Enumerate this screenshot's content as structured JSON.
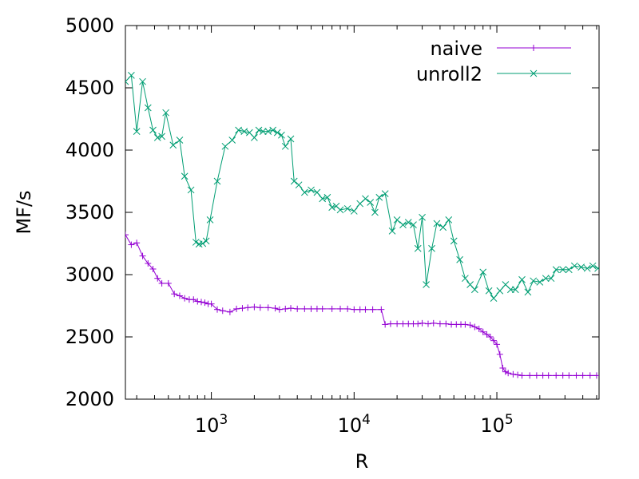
{
  "chart_data": {
    "type": "line",
    "xlabel": "R",
    "ylabel": "MF/s",
    "xscale": "log",
    "xlim": [
      250,
      520000
    ],
    "ylim": [
      2000,
      5000
    ],
    "y_ticks": [
      2000,
      2500,
      3000,
      3500,
      4000,
      4500,
      5000
    ],
    "x_ticks": [
      {
        "value": 1000,
        "base": "10",
        "exp": "3"
      },
      {
        "value": 10000,
        "base": "10",
        "exp": "4"
      },
      {
        "value": 100000,
        "base": "10",
        "exp": "5"
      }
    ],
    "grid": false,
    "legend_position": "top-right",
    "series": [
      {
        "name": "naive",
        "color": "#9400d3",
        "marker": "plus",
        "points": [
          [
            250,
            3320
          ],
          [
            275,
            3240
          ],
          [
            300,
            3255
          ],
          [
            330,
            3150
          ],
          [
            360,
            3090
          ],
          [
            390,
            3045
          ],
          [
            420,
            2970
          ],
          [
            450,
            2930
          ],
          [
            500,
            2930
          ],
          [
            550,
            2845
          ],
          [
            600,
            2830
          ],
          [
            650,
            2810
          ],
          [
            700,
            2800
          ],
          [
            750,
            2800
          ],
          [
            800,
            2785
          ],
          [
            850,
            2780
          ],
          [
            900,
            2775
          ],
          [
            950,
            2765
          ],
          [
            1000,
            2765
          ],
          [
            1100,
            2720
          ],
          [
            1200,
            2710
          ],
          [
            1350,
            2700
          ],
          [
            1500,
            2725
          ],
          [
            1650,
            2730
          ],
          [
            1800,
            2735
          ],
          [
            2000,
            2740
          ],
          [
            2200,
            2735
          ],
          [
            2500,
            2735
          ],
          [
            2800,
            2730
          ],
          [
            3000,
            2720
          ],
          [
            3300,
            2725
          ],
          [
            3600,
            2730
          ],
          [
            4000,
            2725
          ],
          [
            4500,
            2725
          ],
          [
            5000,
            2725
          ],
          [
            5500,
            2725
          ],
          [
            6000,
            2725
          ],
          [
            7000,
            2725
          ],
          [
            8000,
            2725
          ],
          [
            9000,
            2725
          ],
          [
            10000,
            2720
          ],
          [
            11000,
            2720
          ],
          [
            12000,
            2720
          ],
          [
            13500,
            2720
          ],
          [
            15500,
            2720
          ],
          [
            16500,
            2600
          ],
          [
            18000,
            2605
          ],
          [
            20000,
            2605
          ],
          [
            22000,
            2605
          ],
          [
            24000,
            2605
          ],
          [
            26000,
            2605
          ],
          [
            28000,
            2605
          ],
          [
            30000,
            2610
          ],
          [
            33000,
            2605
          ],
          [
            36000,
            2610
          ],
          [
            40000,
            2605
          ],
          [
            44000,
            2605
          ],
          [
            48000,
            2600
          ],
          [
            52000,
            2600
          ],
          [
            56000,
            2600
          ],
          [
            60000,
            2600
          ],
          [
            65000,
            2595
          ],
          [
            70000,
            2580
          ],
          [
            75000,
            2565
          ],
          [
            80000,
            2540
          ],
          [
            85000,
            2520
          ],
          [
            90000,
            2500
          ],
          [
            95000,
            2470
          ],
          [
            100000,
            2440
          ],
          [
            105000,
            2360
          ],
          [
            110000,
            2250
          ],
          [
            115000,
            2220
          ],
          [
            120000,
            2210
          ],
          [
            130000,
            2200
          ],
          [
            140000,
            2195
          ],
          [
            150000,
            2190
          ],
          [
            170000,
            2190
          ],
          [
            190000,
            2190
          ],
          [
            210000,
            2190
          ],
          [
            230000,
            2190
          ],
          [
            260000,
            2190
          ],
          [
            290000,
            2190
          ],
          [
            320000,
            2190
          ],
          [
            360000,
            2190
          ],
          [
            400000,
            2190
          ],
          [
            450000,
            2190
          ],
          [
            500000,
            2190
          ]
        ]
      },
      {
        "name": "unroll2",
        "color": "#009e73",
        "marker": "cross",
        "points": [
          [
            250,
            4550
          ],
          [
            275,
            4600
          ],
          [
            300,
            4150
          ],
          [
            330,
            4550
          ],
          [
            360,
            4340
          ],
          [
            390,
            4160
          ],
          [
            420,
            4100
          ],
          [
            450,
            4110
          ],
          [
            480,
            4300
          ],
          [
            540,
            4040
          ],
          [
            600,
            4080
          ],
          [
            650,
            3790
          ],
          [
            720,
            3680
          ],
          [
            780,
            3260
          ],
          [
            820,
            3245
          ],
          [
            870,
            3250
          ],
          [
            920,
            3270
          ],
          [
            980,
            3440
          ],
          [
            1100,
            3750
          ],
          [
            1250,
            4030
          ],
          [
            1400,
            4080
          ],
          [
            1550,
            4160
          ],
          [
            1700,
            4150
          ],
          [
            1850,
            4140
          ],
          [
            2000,
            4100
          ],
          [
            2150,
            4160
          ],
          [
            2300,
            4150
          ],
          [
            2500,
            4150
          ],
          [
            2700,
            4160
          ],
          [
            2900,
            4140
          ],
          [
            3100,
            4120
          ],
          [
            3300,
            4030
          ],
          [
            3600,
            4090
          ],
          [
            3800,
            3750
          ],
          [
            4100,
            3720
          ],
          [
            4500,
            3660
          ],
          [
            5000,
            3680
          ],
          [
            5500,
            3660
          ],
          [
            6000,
            3610
          ],
          [
            6500,
            3620
          ],
          [
            7000,
            3540
          ],
          [
            7500,
            3550
          ],
          [
            8000,
            3520
          ],
          [
            9000,
            3530
          ],
          [
            10000,
            3510
          ],
          [
            11000,
            3570
          ],
          [
            12000,
            3610
          ],
          [
            13000,
            3580
          ],
          [
            14000,
            3500
          ],
          [
            15000,
            3620
          ],
          [
            16500,
            3650
          ],
          [
            18500,
            3350
          ],
          [
            20000,
            3440
          ],
          [
            22000,
            3400
          ],
          [
            24000,
            3420
          ],
          [
            26000,
            3400
          ],
          [
            28000,
            3210
          ],
          [
            30000,
            3460
          ],
          [
            32000,
            2920
          ],
          [
            35000,
            3210
          ],
          [
            38000,
            3410
          ],
          [
            42000,
            3380
          ],
          [
            46000,
            3440
          ],
          [
            50000,
            3270
          ],
          [
            55000,
            3120
          ],
          [
            60000,
            2970
          ],
          [
            65000,
            2920
          ],
          [
            70000,
            2880
          ],
          [
            80000,
            3020
          ],
          [
            88000,
            2870
          ],
          [
            95000,
            2810
          ],
          [
            105000,
            2870
          ],
          [
            115000,
            2920
          ],
          [
            125000,
            2880
          ],
          [
            135000,
            2880
          ],
          [
            150000,
            2960
          ],
          [
            165000,
            2860
          ],
          [
            180000,
            2950
          ],
          [
            200000,
            2940
          ],
          [
            220000,
            2970
          ],
          [
            240000,
            2970
          ],
          [
            260000,
            3040
          ],
          [
            290000,
            3040
          ],
          [
            320000,
            3040
          ],
          [
            350000,
            3070
          ],
          [
            390000,
            3060
          ],
          [
            430000,
            3050
          ],
          [
            470000,
            3070
          ],
          [
            510000,
            3050
          ]
        ]
      }
    ]
  }
}
